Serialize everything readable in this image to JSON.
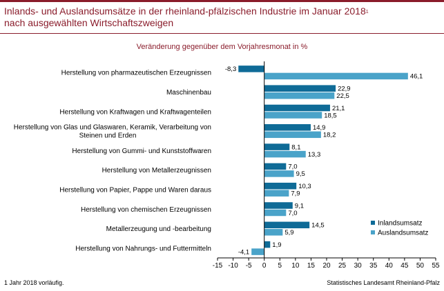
{
  "header": {
    "title": "Inlands- und Auslandsumsätze in der rheinland-pfälzischen Industrie im Januar 2018",
    "title_mark": "1",
    "title_line2": "nach ausgewählten Wirtschaftszweigen"
  },
  "footer": {
    "footnote": "1 Jahr 2018 vorläufig.",
    "source": "Statistisches Landesamt Rheinland-Pfalz"
  },
  "chart_data": {
    "type": "bar",
    "orientation": "horizontal",
    "subtitle": "Veränderung gegenüber dem Vorjahresmonat in %",
    "categories": [
      [
        "Herstellung von pharmazeutischen Erzeugnissen"
      ],
      [
        "Maschinenbau"
      ],
      [
        "Herstellung von Kraftwagen und Kraftwagenteilen"
      ],
      [
        "Herstellung von Glas und Glaswaren, Keramik, Verarbeitung von",
        "Steinen und Erden"
      ],
      [
        "Herstellung von Gummi- und Kunststoffwaren"
      ],
      [
        "Herstellung von Metallerzeugnissen"
      ],
      [
        "Herstellung von Papier, Pappe und Waren daraus"
      ],
      [
        "Herstellung von chemischen Erzeugnissen"
      ],
      [
        "Metallerzeugung und -bearbeitung"
      ],
      [
        "Herstellung von Nahrungs- und Futtermitteln"
      ]
    ],
    "series": [
      {
        "name": "Inlandsumsatz",
        "color": "#0f6b97",
        "values": [
          -8.3,
          22.9,
          21.1,
          14.9,
          8.1,
          7.0,
          10.3,
          9.1,
          14.5,
          1.9
        ],
        "labels": [
          "-8,3",
          "22,9",
          "21,1",
          "14,9",
          "8,1",
          "7,0",
          "10,3",
          "9,1",
          "14,5",
          "1,9"
        ]
      },
      {
        "name": "Auslandsumsatz",
        "color": "#4aa3c9",
        "values": [
          46.1,
          22.5,
          18.5,
          18.2,
          13.3,
          9.5,
          7.9,
          7.0,
          5.9,
          -4.1
        ],
        "labels": [
          "46,1",
          "22,5",
          "18,5",
          "18,2",
          "13,3",
          "9,5",
          "7,9",
          "7,0",
          "5,9",
          "-4,1"
        ]
      }
    ],
    "xlim": [
      -15,
      55
    ],
    "ticks": [
      -15,
      -10,
      -5,
      0,
      5,
      10,
      15,
      20,
      25,
      30,
      35,
      40,
      45,
      50,
      55
    ],
    "legend_position": "bottom-right",
    "grid": false
  }
}
